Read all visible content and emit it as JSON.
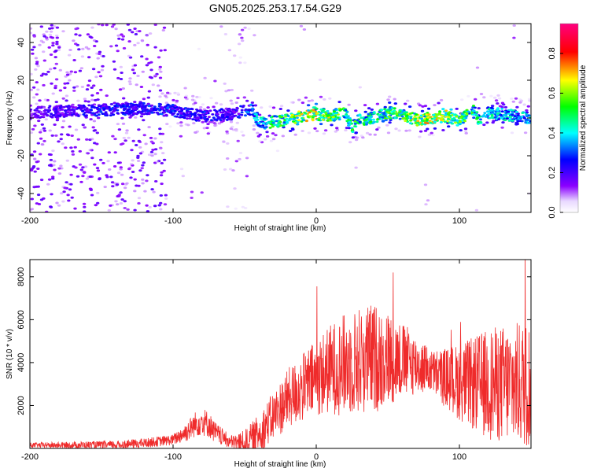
{
  "figure": {
    "title": "GN05.2025.253.17.54.G29"
  },
  "colors": {
    "snr_line": "#ef2b2b",
    "background": "#ffffff",
    "axes": "#000000"
  },
  "chart_data": [
    {
      "type": "heatmap",
      "panel": "top",
      "xlabel": "Height of straight line (km)",
      "ylabel": "Frequency (Hz)",
      "xlim": [
        -200,
        150
      ],
      "ylim": [
        -50,
        50
      ],
      "x_ticks": [
        -200,
        -100,
        0,
        100
      ],
      "y_ticks": [
        -40,
        -20,
        0,
        20,
        40
      ],
      "colorbar": {
        "label": "Normalized spectral amplitude",
        "range": [
          0.0,
          0.95
        ],
        "ticks": [
          0.0,
          0.2,
          0.4,
          0.6,
          0.8
        ],
        "colormap": [
          "#ffffff",
          "#8b00ff",
          "#0000ff",
          "#00ffff",
          "#00ff00",
          "#ffff00",
          "#ff0000",
          "#ff0080"
        ]
      },
      "ridge": {
        "x": [
          -200,
          -160,
          -120,
          -100,
          -80,
          -60,
          -50,
          -45,
          -40,
          -30,
          -20,
          -10,
          0,
          10,
          20,
          25,
          30,
          40,
          50,
          60,
          70,
          80,
          90,
          100,
          110,
          115,
          120,
          130,
          140,
          150
        ],
        "y": [
          3,
          4,
          5,
          4,
          1,
          2,
          4,
          5,
          -3,
          -2,
          -1,
          1,
          2,
          1,
          3,
          -5,
          -1,
          0,
          3,
          2,
          -1,
          0,
          1,
          -1,
          4,
          -3,
          3,
          2,
          1,
          0
        ]
      },
      "ridge_amplitude": {
        "x": [
          -200,
          -150,
          -100,
          -80,
          -60,
          -50,
          -40,
          -20,
          0,
          20,
          40,
          60,
          80,
          100,
          120,
          150
        ],
        "values": [
          0.18,
          0.28,
          0.3,
          0.28,
          0.25,
          0.3,
          0.45,
          0.6,
          0.7,
          0.55,
          0.5,
          0.6,
          0.7,
          0.6,
          0.45,
          0.4
        ]
      }
    },
    {
      "type": "line",
      "panel": "bottom",
      "xlabel": "Height of straight line (km)",
      "ylabel": "SNR (10 * v/v)",
      "xlim": [
        -200,
        150
      ],
      "ylim": [
        0,
        8800
      ],
      "x_ticks": [
        -200,
        -100,
        0,
        100
      ],
      "y_ticks": [
        2000,
        4000,
        6000,
        8000
      ],
      "envelope": {
        "x": [
          -200,
          -180,
          -160,
          -140,
          -120,
          -100,
          -90,
          -85,
          -80,
          -75,
          -70,
          -60,
          -50,
          -40,
          -30,
          -20,
          -10,
          0,
          10,
          20,
          30,
          40,
          50,
          60,
          70,
          80,
          90,
          100,
          110,
          120,
          130,
          140,
          150
        ],
        "values": [
          150,
          150,
          160,
          160,
          250,
          400,
          800,
          1100,
          1300,
          1100,
          700,
          300,
          250,
          700,
          1500,
          2300,
          2800,
          3300,
          3700,
          3900,
          4100,
          4200,
          4200,
          4100,
          3900,
          3600,
          3300,
          3100,
          3000,
          3000,
          3000,
          3000,
          3000
        ]
      },
      "spread": {
        "x": [
          -200,
          -100,
          -80,
          -60,
          -40,
          -20,
          0,
          20,
          40,
          60,
          80,
          100,
          120,
          140,
          150
        ],
        "values": [
          120,
          250,
          700,
          300,
          900,
          1400,
          1800,
          2400,
          2600,
          1800,
          1000,
          1800,
          2600,
          2900,
          3000
        ]
      }
    }
  ]
}
